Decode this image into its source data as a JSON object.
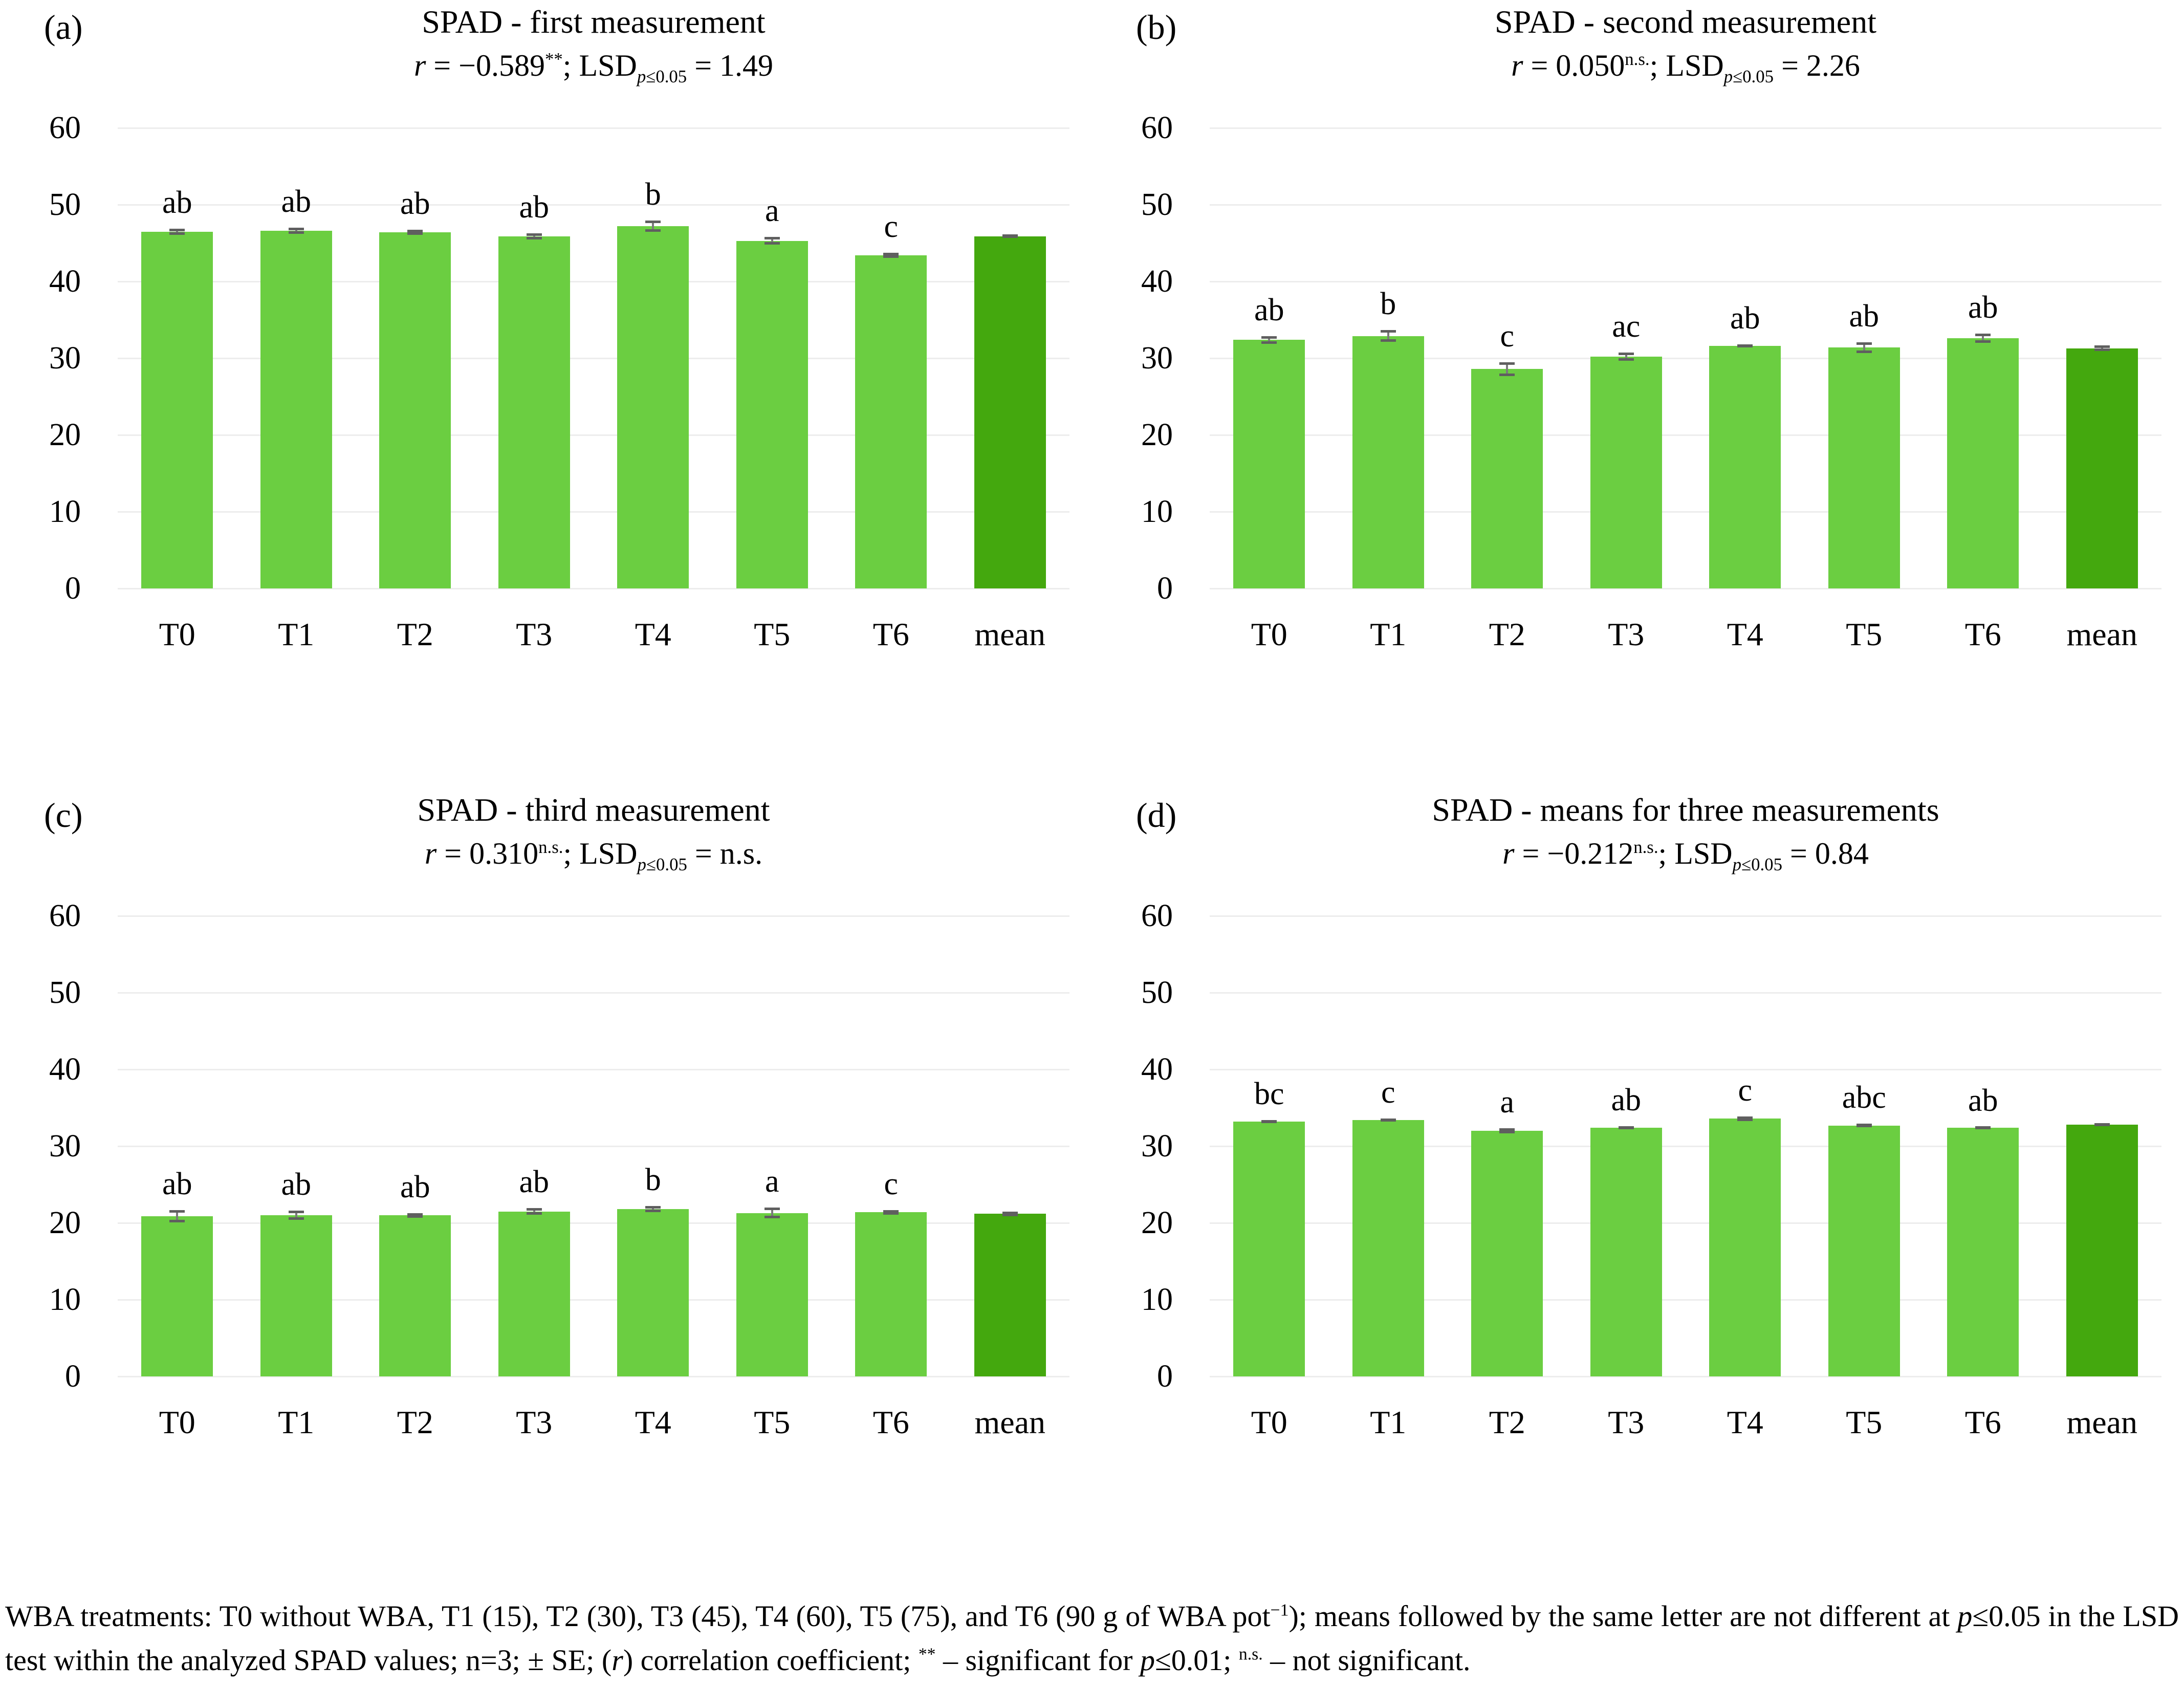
{
  "figure": {
    "colors": {
      "bar": "#6BCE41",
      "mean_bar": "#44A80E",
      "gridline": "#EDEDED",
      "error_bar": "#6F6F6F",
      "text": "#000000",
      "background": "#FFFFFF"
    },
    "footnote_parts": [
      {
        "t": "WBA treatments: T0 without WBA, T1 (15), T2 (30), T3 (45), T4 (60), T5 (75), and T6 (90 g of WBA pot"
      },
      {
        "t": "−1",
        "sup": true
      },
      {
        "t": "); means followed by the same letter are not different at "
      },
      {
        "t": "p",
        "i": true
      },
      {
        "t": "≤0.05 in the LSD test within the analyzed SPAD values; n=3; ± SE; ("
      },
      {
        "t": "r",
        "i": true
      },
      {
        "t": ") correlation coefficient; "
      },
      {
        "t": "**",
        "sup": true
      },
      {
        "t": " – significant for "
      },
      {
        "t": "p",
        "i": true
      },
      {
        "t": "≤0.01; "
      },
      {
        "t": "n.s.",
        "sup": true
      },
      {
        "t": " – not significant."
      }
    ]
  },
  "chart_data": [
    {
      "type": "bar",
      "panel_label": "(a)",
      "title": "SPAD - first measurement",
      "subtitle_parts": [
        {
          "t": "r",
          "i": true
        },
        {
          "t": " = −0.589"
        },
        {
          "t": "**",
          "sup": true
        },
        {
          "t": "; LSD"
        },
        {
          "t": "p",
          "sub": true,
          "i": true
        },
        {
          "t": "≤0.05",
          "sub": true
        },
        {
          "t": " = 1.49"
        }
      ],
      "categories": [
        "T0",
        "T1",
        "T2",
        "T3",
        "T4",
        "T5",
        "T6",
        "mean"
      ],
      "values": [
        46.5,
        46.6,
        46.4,
        45.9,
        47.2,
        45.3,
        43.4,
        45.9
      ],
      "se": [
        0.4,
        0.4,
        0.35,
        0.4,
        0.75,
        0.5,
        0.35,
        0.25
      ],
      "letters": [
        "ab",
        "ab",
        "ab",
        "ab",
        "b",
        "a",
        "c",
        ""
      ],
      "ylabel": "",
      "xlabel": "",
      "ylim": [
        0,
        60
      ],
      "yticks": [
        0,
        10,
        20,
        30,
        40,
        50,
        60
      ],
      "grid": true,
      "legend": "none"
    },
    {
      "type": "bar",
      "panel_label": "(b)",
      "title": "SPAD - second measurement",
      "subtitle_parts": [
        {
          "t": "r",
          "i": true
        },
        {
          "t": " = 0.050"
        },
        {
          "t": "n.s.",
          "sup": true
        },
        {
          "t": "; LSD"
        },
        {
          "t": "p",
          "sub": true,
          "i": true
        },
        {
          "t": "≤0.05",
          "sub": true
        },
        {
          "t": " = 2.26"
        }
      ],
      "categories": [
        "T0",
        "T1",
        "T2",
        "T3",
        "T4",
        "T5",
        "T6",
        "mean"
      ],
      "values": [
        32.4,
        32.9,
        28.6,
        30.2,
        31.6,
        31.4,
        32.6,
        31.3
      ],
      "se": [
        0.5,
        0.75,
        0.9,
        0.55,
        0.2,
        0.7,
        0.6,
        0.35
      ],
      "letters": [
        "ab",
        "b",
        "c",
        "ac",
        "ab",
        "ab",
        "ab",
        ""
      ],
      "ylabel": "",
      "xlabel": "",
      "ylim": [
        0,
        60
      ],
      "yticks": [
        0,
        10,
        20,
        30,
        40,
        50,
        60
      ],
      "grid": true,
      "legend": "none"
    },
    {
      "type": "bar",
      "panel_label": "(c)",
      "title": "SPAD - third measurement",
      "subtitle_parts": [
        {
          "t": "r",
          "i": true
        },
        {
          "t": " = 0.310"
        },
        {
          "t": "n.s.",
          "sup": true
        },
        {
          "t": "; LSD"
        },
        {
          "t": "p",
          "sub": true,
          "i": true
        },
        {
          "t": "≤0.05",
          "sub": true
        },
        {
          "t": " = n.s."
        }
      ],
      "categories": [
        "T0",
        "T1",
        "T2",
        "T3",
        "T4",
        "T5",
        "T6",
        "mean"
      ],
      "values": [
        20.9,
        21.0,
        21.0,
        21.5,
        21.8,
        21.3,
        21.4,
        21.2
      ],
      "se": [
        0.8,
        0.6,
        0.3,
        0.45,
        0.4,
        0.7,
        0.3,
        0.3
      ],
      "letters": [
        "ab",
        "ab",
        "ab",
        "ab",
        "b",
        "a",
        "c",
        ""
      ],
      "ylabel": "",
      "xlabel": "",
      "ylim": [
        0,
        60
      ],
      "yticks": [
        0,
        10,
        20,
        30,
        40,
        50,
        60
      ],
      "grid": true,
      "legend": "none"
    },
    {
      "type": "bar",
      "panel_label": "(d)",
      "title": "SPAD - means for three measurements",
      "subtitle_parts": [
        {
          "t": "r",
          "i": true
        },
        {
          "t": " = −0.212"
        },
        {
          "t": "n.s.",
          "sup": true
        },
        {
          "t": "; LSD"
        },
        {
          "t": "p",
          "sub": true,
          "i": true
        },
        {
          "t": "≤0.05",
          "sub": true
        },
        {
          "t": " = 0.84"
        }
      ],
      "categories": [
        "T0",
        "T1",
        "T2",
        "T3",
        "T4",
        "T5",
        "T6",
        "mean"
      ],
      "values": [
        33.2,
        33.4,
        32.0,
        32.4,
        33.6,
        32.7,
        32.4,
        32.8
      ],
      "se": [
        0.2,
        0.2,
        0.35,
        0.2,
        0.3,
        0.25,
        0.15,
        0.15
      ],
      "letters": [
        "bc",
        "c",
        "a",
        "ab",
        "c",
        "abc",
        "ab",
        ""
      ],
      "ylabel": "",
      "xlabel": "",
      "ylim": [
        0,
        60
      ],
      "yticks": [
        0,
        10,
        20,
        30,
        40,
        50,
        60
      ],
      "grid": true,
      "legend": "none"
    }
  ]
}
